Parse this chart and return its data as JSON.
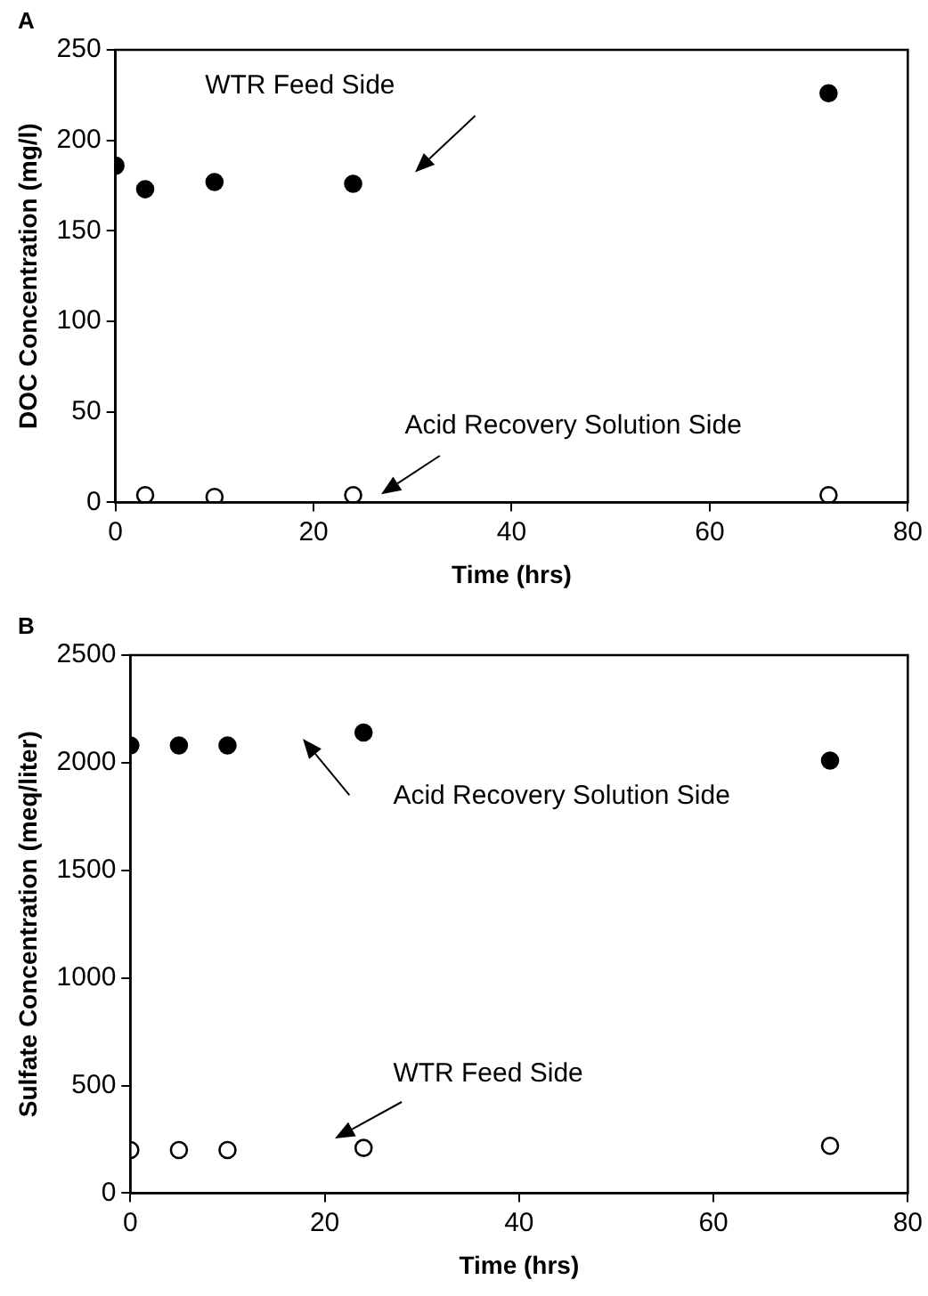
{
  "chart_data": [
    {
      "type": "scatter",
      "title": "A",
      "xlabel": "Time (hrs)",
      "ylabel": "DOC Concentration (mg/l)",
      "xlim": [
        0,
        80
      ],
      "xticks": [
        0,
        20,
        40,
        60,
        80
      ],
      "ylim": [
        0,
        250
      ],
      "yticks": [
        0,
        50,
        100,
        150,
        200,
        250
      ],
      "grid": false,
      "legend": false,
      "marker": "circle",
      "series": [
        {
          "name": "WTR Feed Side",
          "color": "#000000",
          "x": [
            0,
            3,
            10,
            24,
            72
          ],
          "values": [
            186,
            173,
            177,
            176,
            226
          ]
        },
        {
          "name": "Acid Recovery Solution Side",
          "color": "#ffffff",
          "x": [
            3,
            10,
            24,
            72
          ],
          "values": [
            4,
            3,
            4,
            4
          ]
        }
      ]
    },
    {
      "type": "scatter",
      "title": "B",
      "xlabel": "Time (hrs)",
      "ylabel": "Sulfate Concentration (meq/liter)",
      "xlim": [
        0,
        80
      ],
      "xticks": [
        0,
        20,
        40,
        60,
        80
      ],
      "ylim": [
        0,
        2500
      ],
      "yticks": [
        0,
        500,
        1000,
        1500,
        2000,
        2500
      ],
      "grid": false,
      "legend": false,
      "marker": "circle",
      "series": [
        {
          "name": "Acid Recovery Solution Side",
          "color": "#000000",
          "x": [
            0,
            5,
            10,
            24,
            72
          ],
          "values": [
            2080,
            2080,
            2080,
            2140,
            2010
          ]
        },
        {
          "name": "WTR Feed Side",
          "color": "#ffffff",
          "x": [
            0,
            5,
            10,
            24,
            72
          ],
          "values": [
            200,
            200,
            200,
            210,
            220
          ]
        }
      ]
    }
  ]
}
